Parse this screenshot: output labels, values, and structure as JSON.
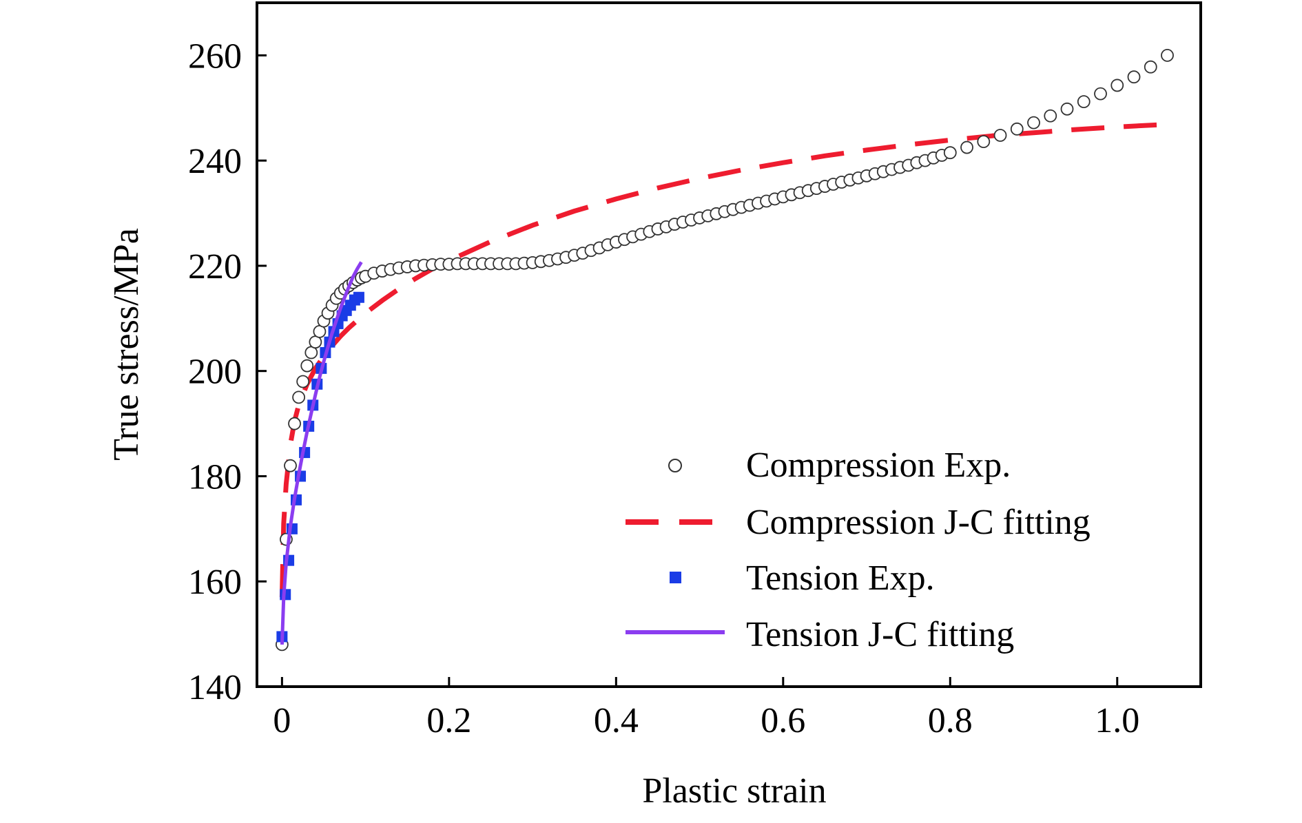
{
  "chart_data": {
    "type": "scatter",
    "xlabel": "Plastic strain",
    "ylabel": "True stress/MPa",
    "xlim": [
      -0.03,
      1.1
    ],
    "ylim": [
      140,
      270
    ],
    "xticks": [
      0,
      0.2,
      0.4,
      0.6,
      0.8,
      1.0
    ],
    "xtick_labels": [
      "0",
      "0.2",
      "0.4",
      "0.6",
      "0.8",
      "1.0"
    ],
    "yticks": [
      140,
      160,
      180,
      200,
      220,
      240,
      260
    ],
    "ytick_labels": [
      "140",
      "160",
      "180",
      "200",
      "220",
      "240",
      "260"
    ],
    "grid": false,
    "legend_position": "bottom-right",
    "series": [
      {
        "name": "Compression Exp.",
        "style": "open-circle-markers",
        "color": "#333333",
        "x": [
          0.0,
          0.005,
          0.01,
          0.015,
          0.02,
          0.025,
          0.03,
          0.035,
          0.04,
          0.045,
          0.05,
          0.055,
          0.06,
          0.065,
          0.07,
          0.075,
          0.08,
          0.085,
          0.09,
          0.095,
          0.1,
          0.11,
          0.12,
          0.13,
          0.14,
          0.15,
          0.16,
          0.17,
          0.18,
          0.19,
          0.2,
          0.21,
          0.22,
          0.23,
          0.24,
          0.25,
          0.26,
          0.27,
          0.28,
          0.29,
          0.3,
          0.31,
          0.32,
          0.33,
          0.34,
          0.35,
          0.36,
          0.37,
          0.38,
          0.39,
          0.4,
          0.41,
          0.42,
          0.43,
          0.44,
          0.45,
          0.46,
          0.47,
          0.48,
          0.49,
          0.5,
          0.51,
          0.52,
          0.53,
          0.54,
          0.55,
          0.56,
          0.57,
          0.58,
          0.59,
          0.6,
          0.61,
          0.62,
          0.63,
          0.64,
          0.65,
          0.66,
          0.67,
          0.68,
          0.69,
          0.7,
          0.71,
          0.72,
          0.73,
          0.74,
          0.75,
          0.76,
          0.77,
          0.78,
          0.79,
          0.8,
          0.82,
          0.84,
          0.86,
          0.88,
          0.9,
          0.92,
          0.94,
          0.96,
          0.98,
          1.0,
          1.02,
          1.04,
          1.06
        ],
        "y": [
          148.0,
          168.0,
          182.0,
          190.0,
          195.0,
          198.0,
          201.0,
          203.5,
          205.5,
          207.5,
          209.5,
          211.0,
          212.5,
          213.8,
          214.8,
          215.6,
          216.2,
          216.8,
          217.3,
          217.7,
          218.0,
          218.6,
          219.0,
          219.3,
          219.6,
          219.8,
          220.0,
          220.1,
          220.2,
          220.3,
          220.3,
          220.4,
          220.4,
          220.4,
          220.4,
          220.4,
          220.4,
          220.4,
          220.4,
          220.5,
          220.6,
          220.8,
          221.0,
          221.3,
          221.6,
          222.0,
          222.4,
          222.9,
          223.4,
          224.0,
          224.5,
          225.0,
          225.5,
          226.0,
          226.5,
          227.0,
          227.4,
          227.9,
          228.3,
          228.7,
          229.1,
          229.5,
          229.9,
          230.3,
          230.7,
          231.1,
          231.5,
          231.9,
          232.3,
          232.7,
          233.1,
          233.5,
          233.9,
          234.3,
          234.7,
          235.1,
          235.5,
          235.9,
          236.3,
          236.7,
          237.1,
          237.5,
          237.9,
          238.3,
          238.7,
          239.1,
          239.6,
          240.0,
          240.5,
          241.0,
          241.5,
          242.5,
          243.6,
          244.8,
          246.0,
          247.2,
          248.5,
          249.8,
          251.2,
          252.7,
          254.3,
          255.9,
          257.8,
          260.0
        ]
      },
      {
        "name": "Compression J-C fitting",
        "style": "dashed-line",
        "color": "#ee1c2f",
        "x": [
          0.0,
          0.002,
          0.005,
          0.01,
          0.015,
          0.02,
          0.03,
          0.04,
          0.05,
          0.06,
          0.07,
          0.08,
          0.09,
          0.1,
          0.12,
          0.14,
          0.16,
          0.18,
          0.2,
          0.25,
          0.3,
          0.35,
          0.4,
          0.45,
          0.5,
          0.55,
          0.6,
          0.65,
          0.7,
          0.75,
          0.8,
          0.85,
          0.9,
          0.95,
          1.0,
          1.05
        ],
        "y": [
          157.0,
          171.0,
          178.5,
          186.0,
          190.5,
          193.5,
          197.5,
          200.5,
          202.8,
          204.8,
          206.6,
          208.2,
          209.6,
          211.0,
          213.4,
          215.6,
          217.6,
          219.4,
          221.0,
          224.6,
          227.7,
          230.4,
          232.7,
          234.8,
          236.6,
          238.2,
          239.6,
          240.9,
          242.0,
          243.0,
          243.9,
          244.7,
          245.3,
          245.9,
          246.4,
          246.8
        ]
      },
      {
        "name": "Tension Exp.",
        "style": "filled-square-markers",
        "color": "#1a3ce6",
        "x": [
          0.0,
          0.004,
          0.008,
          0.012,
          0.017,
          0.022,
          0.027,
          0.032,
          0.037,
          0.042,
          0.047,
          0.052,
          0.057,
          0.062,
          0.067,
          0.072,
          0.077,
          0.082,
          0.087,
          0.092
        ],
        "y": [
          149.5,
          157.5,
          164.0,
          170.0,
          175.5,
          180.0,
          184.5,
          189.5,
          193.5,
          197.5,
          200.5,
          203.5,
          205.5,
          207.5,
          209.0,
          210.5,
          211.5,
          212.5,
          213.5,
          214.0
        ]
      },
      {
        "name": "Tension J-C fitting",
        "style": "solid-line",
        "color": "#8b3df0",
        "x": [
          0.0,
          0.002,
          0.005,
          0.01,
          0.015,
          0.02,
          0.025,
          0.03,
          0.035,
          0.04,
          0.045,
          0.05,
          0.055,
          0.06,
          0.065,
          0.07,
          0.075,
          0.08,
          0.085,
          0.09,
          0.095
        ],
        "y": [
          148.0,
          157.0,
          163.5,
          170.5,
          175.8,
          180.3,
          184.5,
          188.4,
          192.0,
          195.5,
          198.8,
          201.8,
          204.6,
          207.2,
          209.6,
          211.9,
          214.0,
          216.0,
          217.9,
          219.4,
          220.7
        ]
      }
    ]
  }
}
